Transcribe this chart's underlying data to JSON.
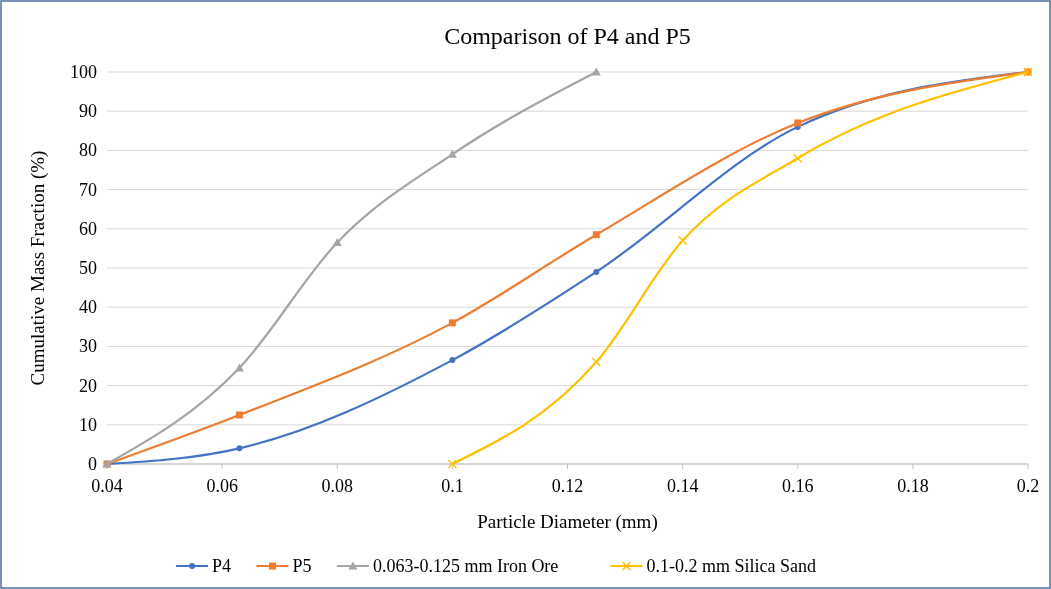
{
  "chart_data": {
    "type": "line",
    "title": "Comparison of P4 and P5",
    "xlabel": "Particle Diameter (mm)",
    "ylabel": "Cumulative Mass Fraction (%)",
    "xlim": [
      0.04,
      0.2
    ],
    "xticks": [
      0.04,
      0.06,
      0.08,
      0.1,
      0.12,
      0.14,
      0.16,
      0.18,
      0.2
    ],
    "ylim": [
      0,
      100
    ],
    "yticks": [
      0,
      10,
      20,
      30,
      40,
      50,
      60,
      70,
      80,
      90,
      100
    ],
    "grid": "y",
    "legend": "bottom",
    "series": [
      {
        "name": "P4",
        "color": "#4472c4",
        "marker": "circle",
        "x": [
          0.04,
          0.063,
          0.1,
          0.125,
          0.16,
          0.2
        ],
        "values": [
          0,
          4,
          26.5,
          49,
          86,
          100
        ]
      },
      {
        "name": "P5",
        "color": "#ed7d31",
        "marker": "square",
        "x": [
          0.04,
          0.063,
          0.1,
          0.125,
          0.16,
          0.2
        ],
        "values": [
          0,
          12.5,
          36,
          58.5,
          87,
          100
        ]
      },
      {
        "name": "0.063-0.125 mm Iron Ore",
        "color": "#a5a5a5",
        "marker": "triangle",
        "x": [
          0.04,
          0.063,
          0.08,
          0.1,
          0.125
        ],
        "values": [
          0,
          24.5,
          56.5,
          79,
          100
        ]
      },
      {
        "name": "0.1-0.2 mm Silica Sand",
        "color": "#ffc000",
        "marker": "cross",
        "x": [
          0.1,
          0.125,
          0.14,
          0.16,
          0.2
        ],
        "values": [
          0,
          26,
          57,
          78,
          100
        ]
      }
    ]
  }
}
